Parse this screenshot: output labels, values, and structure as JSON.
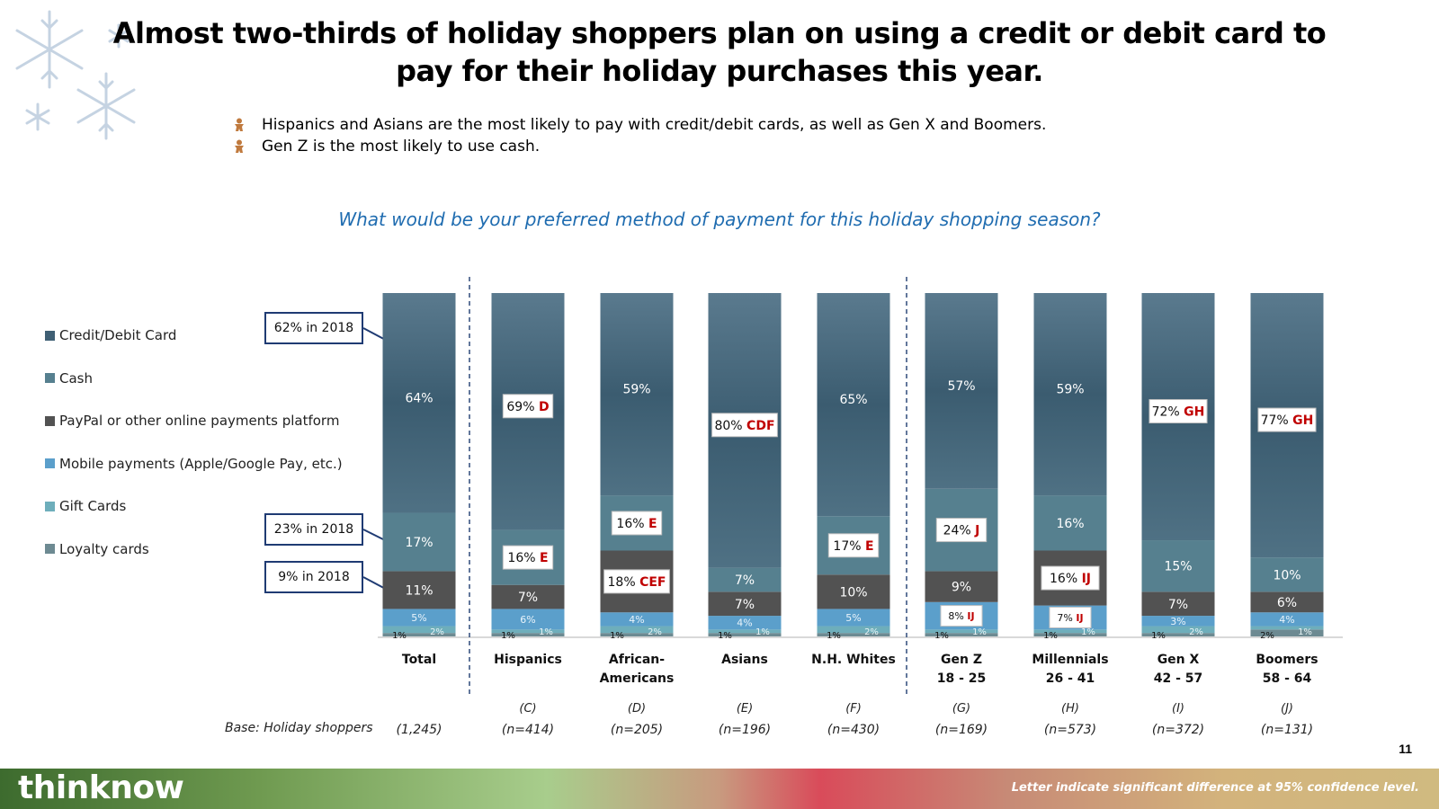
{
  "title": "Almost two-thirds of holiday shoppers plan on using a credit or debit card to pay for their holiday purchases this year.",
  "bullets": [
    "Hispanics and Asians are the most likely to pay with credit/debit cards, as well as Gen X and Boomers.",
    "Gen Z is the most likely to use cash."
  ],
  "bullet_icon": "gingerbread-icon",
  "question": "What would be your preferred method of payment for this holiday shopping season?",
  "callouts": [
    "62% in 2018",
    "23% in 2018",
    "9% in 2018"
  ],
  "base_label": "Base: Holiday shoppers",
  "page_number": "11",
  "footer": {
    "logo": "thinknow",
    "footnote": "Letter indicate significant difference at 95% confidence level."
  },
  "colors": {
    "credit": "#3f5f74",
    "cash": "#56808f",
    "paypal": "#525252",
    "mobile": "#5b9fcb",
    "gift": "#6eaebb",
    "loyalty": "#6d8a92",
    "sig_letter": "#c00000",
    "callout_border": "#1f3b73",
    "question": "#1f6cb0"
  },
  "chart_data": {
    "type": "bar",
    "stacked": true,
    "ylim": [
      0,
      100
    ],
    "grid": false,
    "legend_position": "left",
    "series": [
      {
        "name": "Credit/Debit Card",
        "color": "#3f5f74"
      },
      {
        "name": "Cash",
        "color": "#56808f"
      },
      {
        "name": "PayPal or other online payments platform",
        "color": "#525252"
      },
      {
        "name": "Mobile payments (Apple/Google Pay, etc.)",
        "color": "#5b9fcb"
      },
      {
        "name": "Gift Cards",
        "color": "#6eaebb"
      },
      {
        "name": "Loyalty cards",
        "color": "#6d8a92"
      }
    ],
    "groups": [
      {
        "label": [
          "Total"
        ],
        "code": "",
        "base": "(1,245)",
        "values": {
          "credit": 64,
          "cash": 17,
          "paypal": 11,
          "mobile": 5,
          "gift": 2,
          "loyalty": 1
        },
        "sig": {}
      },
      {
        "label": [
          "Hispanics"
        ],
        "code": "(C)",
        "base": "(n=414)",
        "values": {
          "credit": 69,
          "cash": 16,
          "paypal": 7,
          "mobile": 6,
          "gift": 1,
          "loyalty": 1
        },
        "sig": {
          "credit": "D",
          "cash": "E"
        }
      },
      {
        "label": [
          "African-",
          "Americans"
        ],
        "code": "(D)",
        "base": "(n=205)",
        "values": {
          "credit": 59,
          "cash": 16,
          "paypal": 18,
          "mobile": 4,
          "gift": 2,
          "loyalty": 1
        },
        "sig": {
          "cash": "E",
          "paypal": "CEF"
        }
      },
      {
        "label": [
          "Asians"
        ],
        "code": "(E)",
        "base": "(n=196)",
        "values": {
          "credit": 80,
          "cash": 7,
          "paypal": 7,
          "mobile": 4,
          "gift": 1,
          "loyalty": 1
        },
        "sig": {
          "credit": "CDF"
        }
      },
      {
        "label": [
          "N.H. Whites"
        ],
        "code": "(F)",
        "base": "(n=430)",
        "values": {
          "credit": 65,
          "cash": 17,
          "paypal": 10,
          "mobile": 5,
          "gift": 2,
          "loyalty": 1
        },
        "sig": {
          "cash": "E"
        }
      },
      {
        "label": [
          "Gen Z",
          "18 - 25"
        ],
        "code": "(G)",
        "base": "(n=169)",
        "values": {
          "credit": 57,
          "cash": 24,
          "paypal": 9,
          "mobile": 8,
          "gift": 1,
          "loyalty": 1
        },
        "sig": {
          "cash": "J",
          "mobile": "IJ"
        }
      },
      {
        "label": [
          "Millennials",
          "26 - 41"
        ],
        "code": "(H)",
        "base": "(n=573)",
        "values": {
          "credit": 59,
          "cash": 16,
          "paypal": 16,
          "mobile": 7,
          "gift": 1,
          "loyalty": 1
        },
        "sig": {
          "paypal": "IJ",
          "mobile": "IJ"
        }
      },
      {
        "label": [
          "Gen X",
          "42 - 57"
        ],
        "code": "(I)",
        "base": "(n=372)",
        "values": {
          "credit": 72,
          "cash": 15,
          "paypal": 7,
          "mobile": 3,
          "gift": 2,
          "loyalty": 1
        },
        "sig": {
          "credit": "GH"
        }
      },
      {
        "label": [
          "Boomers",
          "58 - 64"
        ],
        "code": "(J)",
        "base": "(n=131)",
        "values": {
          "credit": 77,
          "cash": 10,
          "paypal": 6,
          "mobile": 4,
          "gift": 1,
          "loyalty": 2
        },
        "sig": {
          "credit": "GH"
        }
      }
    ]
  }
}
